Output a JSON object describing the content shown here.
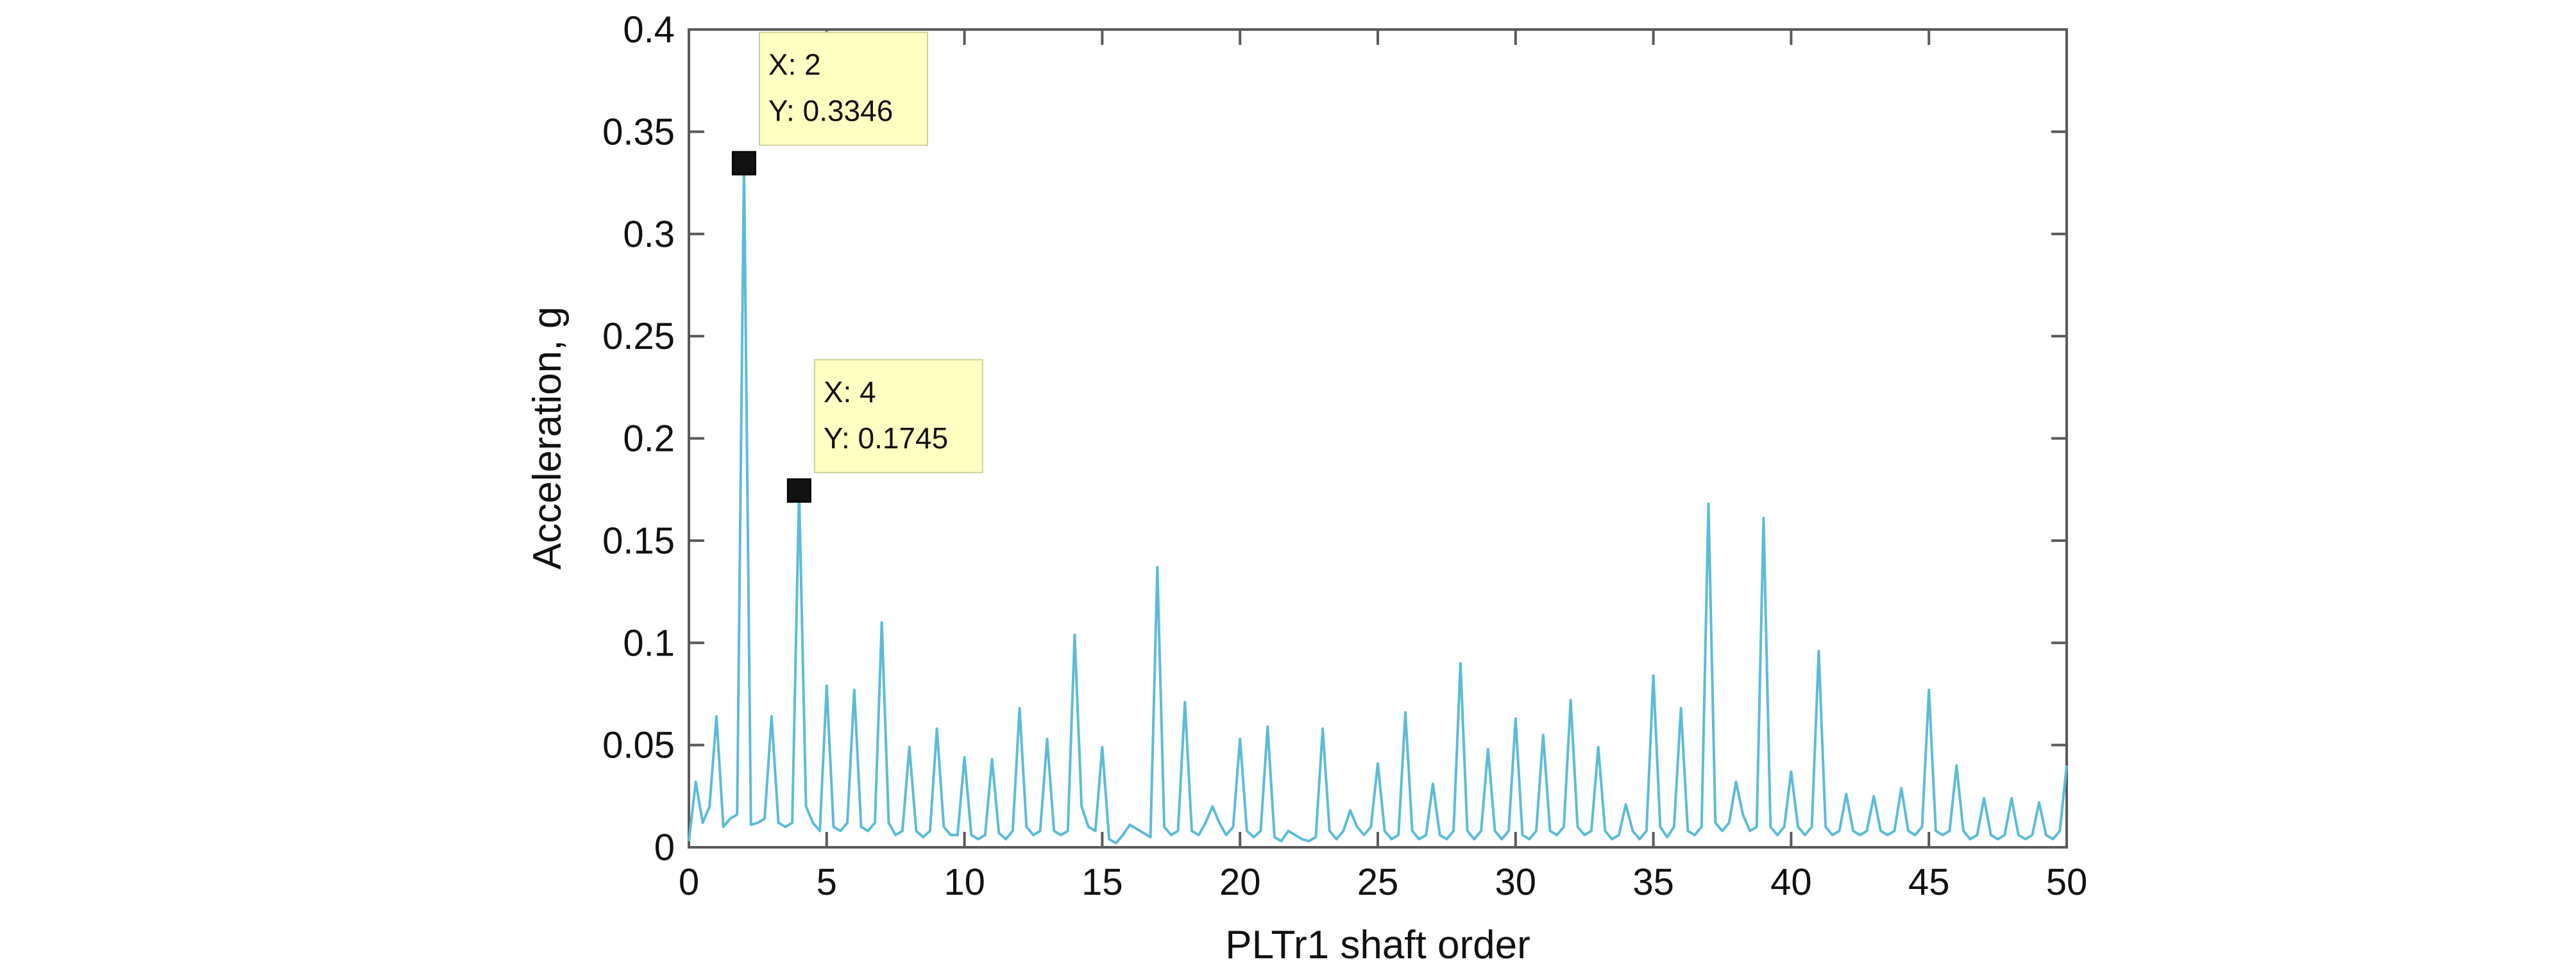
{
  "chart_data": {
    "type": "line",
    "title": "",
    "xlabel": "PLTr1  shaft order",
    "ylabel": "Acceleration, g",
    "xlim": [
      0,
      50
    ],
    "ylim": [
      0,
      0.4
    ],
    "x_ticks": [
      "0",
      "5",
      "10",
      "15",
      "20",
      "25",
      "30",
      "35",
      "40",
      "45",
      "50"
    ],
    "y_ticks": [
      "0",
      "0.05",
      "0.1",
      "0.15",
      "0.2",
      "0.25",
      "0.3",
      "0.35",
      "0.4"
    ],
    "grid": false,
    "line_color": "#5bbcd8",
    "series": [
      {
        "x": [
          0,
          0.25,
          0.5,
          0.75,
          1,
          1.25,
          1.5,
          1.75,
          2,
          2.25,
          2.5,
          2.75,
          3,
          3.25,
          3.5,
          3.75,
          4,
          4.25,
          4.5,
          4.75,
          5,
          5.25,
          5.5,
          5.75,
          6,
          6.25,
          6.5,
          6.75,
          7,
          7.25,
          7.5,
          7.75,
          8,
          8.25,
          8.5,
          8.75,
          9,
          9.25,
          9.5,
          9.75,
          10,
          10.25,
          10.5,
          10.75,
          11,
          11.25,
          11.5,
          11.75,
          12,
          12.25,
          12.5,
          12.75,
          13,
          13.25,
          13.5,
          13.75,
          14,
          14.25,
          14.5,
          14.75,
          15,
          15.25,
          15.5,
          15.75,
          16,
          16.25,
          16.5,
          16.75,
          17,
          17.25,
          17.5,
          17.75,
          18,
          18.25,
          18.5,
          18.75,
          19,
          19.25,
          19.5,
          19.75,
          20,
          20.25,
          20.5,
          20.75,
          21,
          21.25,
          21.5,
          21.75,
          22,
          22.25,
          22.5,
          22.75,
          23,
          23.25,
          23.5,
          23.75,
          24,
          24.25,
          24.5,
          24.75,
          25,
          25.25,
          25.5,
          25.75,
          26,
          26.25,
          26.5,
          26.75,
          27,
          27.25,
          27.5,
          27.75,
          28,
          28.25,
          28.5,
          28.75,
          29,
          29.25,
          29.5,
          29.75,
          30,
          30.25,
          30.5,
          30.75,
          31,
          31.25,
          31.5,
          31.75,
          32,
          32.25,
          32.5,
          32.75,
          33,
          33.25,
          33.5,
          33.75,
          34,
          34.25,
          34.5,
          34.75,
          35,
          35.25,
          35.5,
          35.75,
          36,
          36.25,
          36.5,
          36.75,
          37,
          37.25,
          37.5,
          37.75,
          38,
          38.25,
          38.5,
          38.75,
          39,
          39.25,
          39.5,
          39.75,
          40,
          40.25,
          40.5,
          40.75,
          41,
          41.25,
          41.5,
          41.75,
          42,
          42.25,
          42.5,
          42.75,
          43,
          43.25,
          43.5,
          43.75,
          44,
          44.25,
          44.5,
          44.75,
          45,
          45.25,
          45.5,
          45.75,
          46,
          46.25,
          46.5,
          46.75,
          47,
          47.25,
          47.5,
          47.75,
          48,
          48.25,
          48.5,
          48.75,
          49,
          49.25,
          49.5,
          49.75,
          50
        ],
        "y": [
          0.003,
          0.032,
          0.012,
          0.02,
          0.064,
          0.01,
          0.014,
          0.016,
          0.3346,
          0.011,
          0.012,
          0.014,
          0.064,
          0.012,
          0.01,
          0.012,
          0.1745,
          0.02,
          0.012,
          0.008,
          0.079,
          0.01,
          0.008,
          0.012,
          0.077,
          0.01,
          0.008,
          0.012,
          0.11,
          0.012,
          0.006,
          0.008,
          0.049,
          0.008,
          0.005,
          0.008,
          0.058,
          0.01,
          0.006,
          0.006,
          0.044,
          0.006,
          0.004,
          0.006,
          0.043,
          0.007,
          0.004,
          0.008,
          0.068,
          0.01,
          0.006,
          0.008,
          0.053,
          0.008,
          0.006,
          0.008,
          0.104,
          0.02,
          0.01,
          0.008,
          0.049,
          0.004,
          0.002,
          0.006,
          0.011,
          0.009,
          0.007,
          0.005,
          0.137,
          0.01,
          0.006,
          0.008,
          0.071,
          0.008,
          0.006,
          0.012,
          0.02,
          0.012,
          0.006,
          0.01,
          0.053,
          0.008,
          0.005,
          0.008,
          0.059,
          0.005,
          0.003,
          0.008,
          0.006,
          0.004,
          0.003,
          0.005,
          0.058,
          0.008,
          0.004,
          0.008,
          0.018,
          0.01,
          0.006,
          0.01,
          0.041,
          0.008,
          0.004,
          0.006,
          0.066,
          0.008,
          0.004,
          0.006,
          0.031,
          0.006,
          0.004,
          0.008,
          0.09,
          0.008,
          0.004,
          0.008,
          0.048,
          0.008,
          0.004,
          0.008,
          0.063,
          0.006,
          0.004,
          0.008,
          0.055,
          0.008,
          0.006,
          0.01,
          0.072,
          0.01,
          0.006,
          0.008,
          0.049,
          0.008,
          0.004,
          0.006,
          0.021,
          0.008,
          0.004,
          0.008,
          0.084,
          0.01,
          0.005,
          0.01,
          0.068,
          0.008,
          0.006,
          0.01,
          0.168,
          0.012,
          0.008,
          0.012,
          0.032,
          0.016,
          0.008,
          0.01,
          0.161,
          0.01,
          0.006,
          0.01,
          0.037,
          0.01,
          0.006,
          0.01,
          0.096,
          0.01,
          0.006,
          0.008,
          0.026,
          0.008,
          0.006,
          0.008,
          0.025,
          0.008,
          0.006,
          0.008,
          0.029,
          0.008,
          0.006,
          0.01,
          0.077,
          0.008,
          0.006,
          0.008,
          0.04,
          0.008,
          0.004,
          0.006,
          0.024,
          0.006,
          0.004,
          0.006,
          0.024,
          0.006,
          0.004,
          0.006,
          0.022,
          0.006,
          0.004,
          0.008,
          0.04
        ]
      }
    ],
    "annotations": [
      {
        "x": 2,
        "y": 0.3346,
        "line1": "X: 2",
        "line2": "Y: 0.3346"
      },
      {
        "x": 4,
        "y": 0.1745,
        "line1": "X: 4",
        "line2": "Y: 0.1745"
      }
    ]
  }
}
